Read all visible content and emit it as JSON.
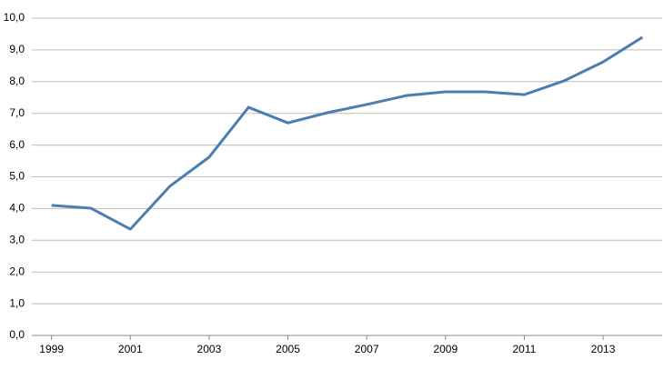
{
  "chart_data": {
    "type": "line",
    "x": [
      1999,
      2000,
      2001,
      2002,
      2003,
      2004,
      2005,
      2006,
      2007,
      2008,
      2009,
      2010,
      2011,
      2012,
      2013,
      2014
    ],
    "series": [
      {
        "color": "#4a7eb0",
        "values": [
          4.1,
          4.01,
          3.35,
          4.7,
          5.62,
          7.19,
          6.7,
          7.02,
          7.28,
          7.56,
          7.68,
          7.68,
          7.59,
          8.02,
          8.62,
          9.4
        ]
      }
    ],
    "xlim": [
      1998.5,
      2014.5
    ],
    "xticks": [
      1999,
      2001,
      2003,
      2005,
      2007,
      2009,
      2011,
      2013
    ],
    "ylim": [
      0,
      10
    ],
    "yticks": [
      {
        "value": 0,
        "label": "0,0"
      },
      {
        "value": 1,
        "label": "1,0"
      },
      {
        "value": 2,
        "label": "2,0"
      },
      {
        "value": 3,
        "label": "3,0"
      },
      {
        "value": 4,
        "label": "4,0"
      },
      {
        "value": 5,
        "label": "5,0"
      },
      {
        "value": 6,
        "label": "6,0"
      },
      {
        "value": 7,
        "label": "7,0"
      },
      {
        "value": 8,
        "label": "8,0"
      },
      {
        "value": 9,
        "label": "9,0"
      },
      {
        "value": 10,
        "label": "10,0"
      }
    ],
    "grid": true
  }
}
